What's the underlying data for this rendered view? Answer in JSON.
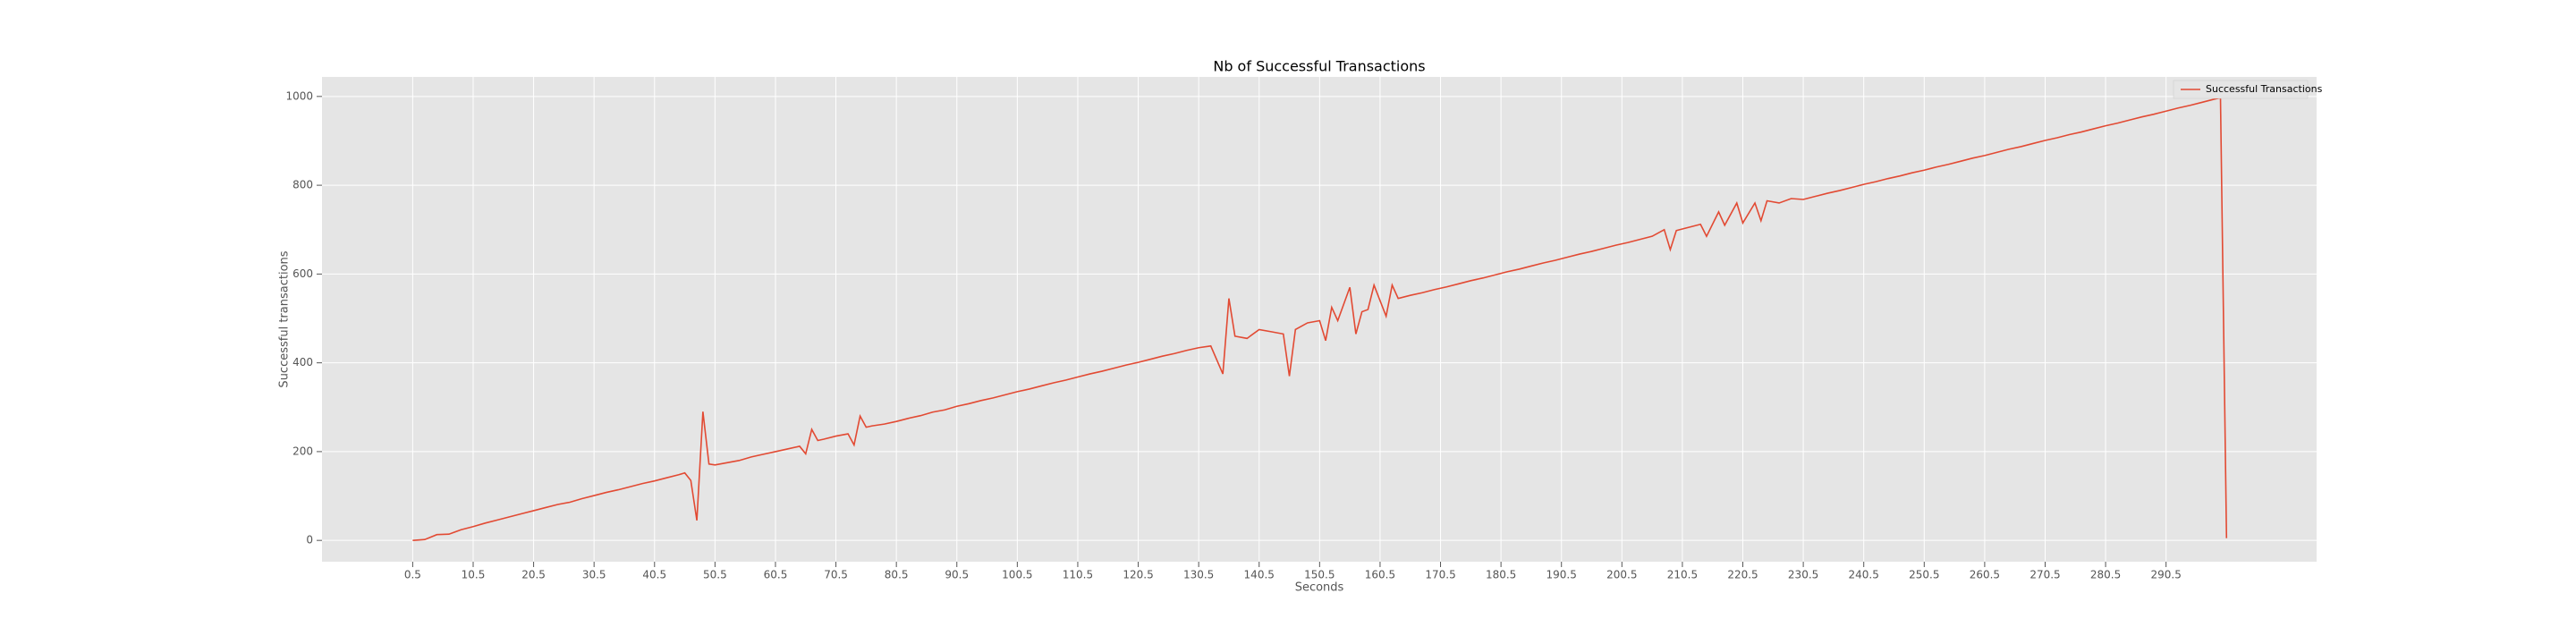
{
  "chart_data": {
    "type": "line",
    "title": "Nb of Successful Transactions",
    "xlabel": "Seconds",
    "ylabel": "Successful transactions",
    "x": [
      0.5,
      2.5,
      4.5,
      6.5,
      8.5,
      10.5,
      12.5,
      14.5,
      16.5,
      18.5,
      20.5,
      22.5,
      24.5,
      26.5,
      28.5,
      30.5,
      32.5,
      34.5,
      36.5,
      38.5,
      40.5,
      42.5,
      44.5,
      45.5,
      46.5,
      47.5,
      48.5,
      49.5,
      50.5,
      52.5,
      54.5,
      56.5,
      58.5,
      60.5,
      62.5,
      64.5,
      65.5,
      66.5,
      67.5,
      68.5,
      70.5,
      72.5,
      73.5,
      74.5,
      75.5,
      76.5,
      78.5,
      80.5,
      82.5,
      84.5,
      86.5,
      88.5,
      90.5,
      92.5,
      94.5,
      96.5,
      98.5,
      100.5,
      102.5,
      104.5,
      106.5,
      108.5,
      110.5,
      112.5,
      114.5,
      116.5,
      118.5,
      120.5,
      122.5,
      124.5,
      126.5,
      128.5,
      130.5,
      132.5,
      134.5,
      135.5,
      136.5,
      138.5,
      140.5,
      142.5,
      144.5,
      145.5,
      146.5,
      148.5,
      150.5,
      151.5,
      152.5,
      153.5,
      155.5,
      156.5,
      157.5,
      158.5,
      159.5,
      161.5,
      162.5,
      163.5,
      165.5,
      167.5,
      169.5,
      171.5,
      173.5,
      175.5,
      177.5,
      179.5,
      181.5,
      183.5,
      185.5,
      187.5,
      189.5,
      191.5,
      193.5,
      195.5,
      197.5,
      199.5,
      201.5,
      203.5,
      205.5,
      207.5,
      208.5,
      209.5,
      211.5,
      213.5,
      214.5,
      216.5,
      217.5,
      219.5,
      220.5,
      222.5,
      223.5,
      224.5,
      226.5,
      228.5,
      230.5,
      232.5,
      234.5,
      236.5,
      238.5,
      240.5,
      242.5,
      244.5,
      246.5,
      248.5,
      250.5,
      252.5,
      254.5,
      256.5,
      258.5,
      260.5,
      262.5,
      264.5,
      266.5,
      268.5,
      270.5,
      272.5,
      274.5,
      276.5,
      278.5,
      280.5,
      282.5,
      284.5,
      286.5,
      288.5,
      290.5,
      292.5,
      294.5,
      296.5,
      298.5,
      299.5,
      300.5
    ],
    "series": [
      {
        "name": "Successful Transactions",
        "color": "#E24A33",
        "values": [
          0,
          2,
          13,
          14,
          24,
          31,
          39,
          46,
          53,
          60,
          67,
          74,
          81,
          86,
          94,
          101,
          108,
          114,
          121,
          128,
          134,
          141,
          148,
          152,
          135,
          45,
          290,
          172,
          170,
          175,
          180,
          188,
          194,
          200,
          206,
          212,
          195,
          250,
          225,
          228,
          235,
          240,
          215,
          280,
          255,
          258,
          262,
          268,
          275,
          281,
          289,
          294,
          302,
          308,
          315,
          321,
          328,
          335,
          341,
          348,
          355,
          361,
          368,
          375,
          381,
          388,
          395,
          401,
          408,
          415,
          421,
          428,
          434,
          438,
          375,
          545,
          460,
          455,
          475,
          470,
          465,
          370,
          475,
          490,
          495,
          450,
          525,
          495,
          570,
          465,
          515,
          520,
          575,
          505,
          575,
          545,
          552,
          558,
          565,
          571,
          578,
          585,
          591,
          598,
          605,
          611,
          618,
          625,
          631,
          638,
          645,
          651,
          658,
          665,
          671,
          678,
          685,
          700,
          655,
          698,
          705,
          712,
          685,
          740,
          710,
          760,
          715,
          760,
          720,
          765,
          760,
          770,
          768,
          775,
          782,
          788,
          795,
          802,
          808,
          815,
          821,
          828,
          834,
          841,
          847,
          854,
          861,
          867,
          874,
          881,
          887,
          894,
          901,
          907,
          914,
          920,
          927,
          934,
          940,
          947,
          954,
          960,
          967,
          974,
          980,
          987,
          994,
          997,
          5
        ]
      }
    ],
    "xlim": [
      -14.5,
      315.4
    ],
    "ylim": [
      -48,
      1044
    ],
    "xticks": [
      0.5,
      10.5,
      20.5,
      30.5,
      40.5,
      50.5,
      60.5,
      70.5,
      80.5,
      90.5,
      100.5,
      110.5,
      120.5,
      130.5,
      140.5,
      150.5,
      160.5,
      170.5,
      180.5,
      190.5,
      200.5,
      210.5,
      220.5,
      230.5,
      240.5,
      250.5,
      260.5,
      270.5,
      280.5,
      290.5
    ],
    "yticks": [
      0,
      200,
      400,
      600,
      800,
      1000
    ],
    "grid": true,
    "legend": "upper right"
  }
}
